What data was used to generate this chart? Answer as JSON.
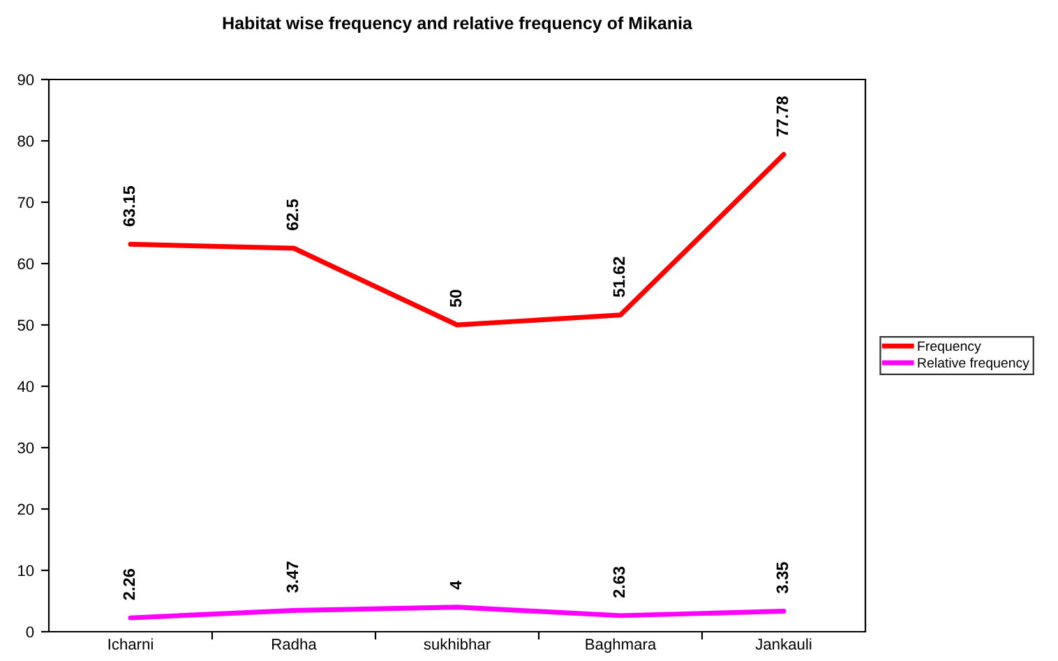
{
  "chart_data": {
    "type": "line",
    "title": "Habitat wise frequency and relative frequency of Mikania",
    "categories": [
      "Icharni",
      "Radha",
      "sukhibhar",
      "Baghmara",
      "Jankauli"
    ],
    "series": [
      {
        "name": "Frequency",
        "color": "#ff0000",
        "values": [
          63.15,
          62.5,
          50,
          51.62,
          77.78
        ]
      },
      {
        "name": "Relative frequency",
        "color": "#ff00ff",
        "values": [
          2.26,
          3.47,
          4,
          2.63,
          3.35
        ]
      }
    ],
    "ylim": [
      0,
      90
    ],
    "yticks": [
      0,
      10,
      20,
      30,
      40,
      50,
      60,
      70,
      80,
      90
    ],
    "grid": false,
    "legend": "right",
    "marker": "none",
    "line_style": "solid",
    "data_labels": true
  }
}
